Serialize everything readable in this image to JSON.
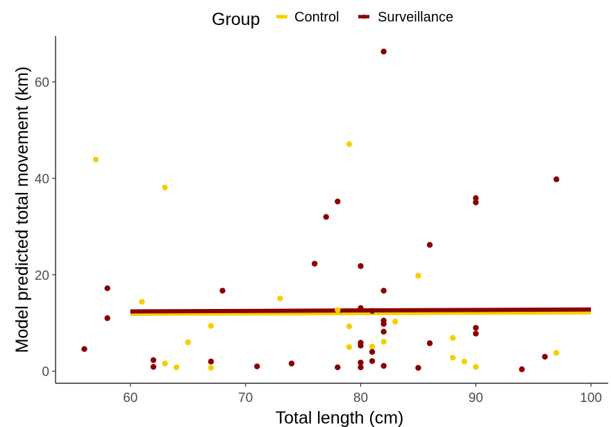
{
  "chart_data": {
    "type": "scatter",
    "xlabel": "Total length (cm)",
    "ylabel": "Model predicted total movement (km)",
    "xlim": [
      53.5,
      101.5
    ],
    "ylim": [
      -2.5,
      69.5
    ],
    "xticks": [
      60,
      70,
      80,
      90,
      100
    ],
    "yticks": [
      0,
      20,
      40,
      60
    ],
    "grid": false,
    "legend": {
      "title": "Group",
      "position": "top"
    },
    "series": [
      {
        "name": "Control",
        "color": "#F5D000",
        "points": [
          [
            57,
            43.9
          ],
          [
            61,
            14.4
          ],
          [
            63,
            38.1
          ],
          [
            63,
            1.6
          ],
          [
            64,
            0.8
          ],
          [
            65,
            6.0
          ],
          [
            67,
            9.4
          ],
          [
            67,
            0.7
          ],
          [
            73,
            15.1
          ],
          [
            78,
            12.7
          ],
          [
            79,
            47.1
          ],
          [
            79,
            9.3
          ],
          [
            79,
            5.0
          ],
          [
            81,
            12.3
          ],
          [
            81,
            5.1
          ],
          [
            82,
            6.1
          ],
          [
            83,
            10.3
          ],
          [
            85,
            19.8
          ],
          [
            88,
            6.9
          ],
          [
            88,
            2.8
          ],
          [
            89,
            2.0
          ],
          [
            90,
            0.9
          ],
          [
            97,
            3.8
          ]
        ],
        "fit": {
          "x": [
            60,
            100
          ],
          "y": [
            11.9,
            12.2
          ]
        }
      },
      {
        "name": "Surveillance",
        "color": "#8B0000",
        "points": [
          [
            56,
            4.6
          ],
          [
            58,
            17.2
          ],
          [
            58,
            11.0
          ],
          [
            62,
            2.3
          ],
          [
            62,
            0.9
          ],
          [
            67,
            2.0
          ],
          [
            68,
            16.7
          ],
          [
            71,
            1.0
          ],
          [
            74,
            1.6
          ],
          [
            76,
            22.3
          ],
          [
            77,
            32.0
          ],
          [
            78,
            35.2
          ],
          [
            78,
            0.8
          ],
          [
            80,
            21.8
          ],
          [
            80,
            13.1
          ],
          [
            80,
            5.9
          ],
          [
            80,
            5.3
          ],
          [
            80,
            1.8
          ],
          [
            80,
            0.8
          ],
          [
            81,
            12.5
          ],
          [
            81,
            4.0
          ],
          [
            81,
            2.1
          ],
          [
            82,
            66.3
          ],
          [
            82,
            16.7
          ],
          [
            82,
            10.5
          ],
          [
            82,
            9.8
          ],
          [
            82,
            8.2
          ],
          [
            82,
            1.1
          ],
          [
            85,
            0.7
          ],
          [
            86,
            26.2
          ],
          [
            86,
            5.8
          ],
          [
            90,
            35.9
          ],
          [
            90,
            35.0
          ],
          [
            90,
            9.0
          ],
          [
            90,
            7.8
          ],
          [
            94,
            0.4
          ],
          [
            96,
            3.0
          ],
          [
            97,
            39.8
          ]
        ],
        "fit": {
          "x": [
            60,
            100
          ],
          "y": [
            12.4,
            12.8
          ]
        }
      }
    ]
  }
}
